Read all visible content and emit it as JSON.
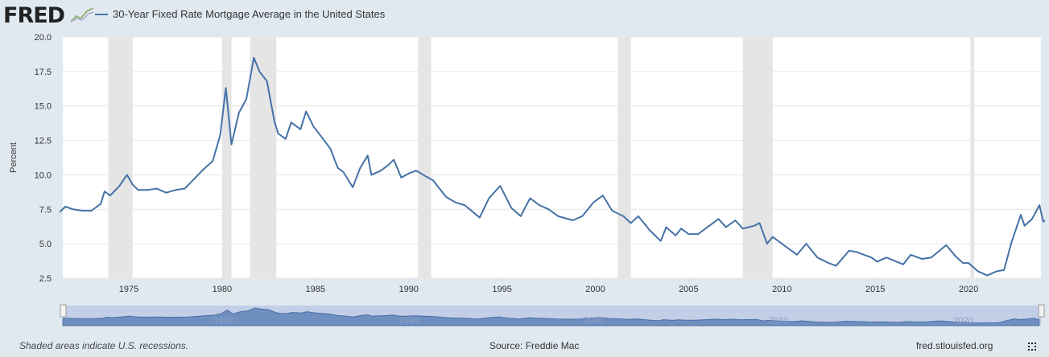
{
  "logo": "FRED",
  "legend": "30-Year Fixed Rate Mortgage Average in the United States",
  "footer": {
    "note": "Shaded areas indicate U.S. recessions.",
    "source": "Source: Freddie Mac",
    "site": "fred.stlouisfed.org"
  },
  "colors": {
    "line": "#4572a7",
    "recession": "#e5e5e5",
    "background": "#e1e9f0",
    "navigator": "#6f8fc0"
  },
  "chart_data": {
    "type": "line",
    "title": "30-Year Fixed Rate Mortgage Average in the United States",
    "ylabel": "Percent",
    "ylim": [
      2.5,
      20.0
    ],
    "xlim": [
      1971.3,
      2024.2
    ],
    "yticks": [
      "2.5",
      "5.0",
      "7.5",
      "10.0",
      "12.5",
      "15.0",
      "17.5",
      "20.0"
    ],
    "xticks": [
      "1975",
      "1980",
      "1985",
      "1990",
      "1995",
      "2000",
      "2005",
      "2010",
      "2015",
      "2020"
    ],
    "navigator_ticks": [
      "1980",
      "1990",
      "2000",
      "2010",
      "2020"
    ],
    "grid": true,
    "recessions": [
      [
        1973.9,
        1975.2
      ],
      [
        1980.0,
        1980.5
      ],
      [
        1981.5,
        1982.9
      ],
      [
        1990.5,
        1991.2
      ],
      [
        2001.2,
        2001.9
      ],
      [
        2007.9,
        2009.5
      ],
      [
        2020.1,
        2020.3
      ]
    ],
    "series": [
      {
        "name": "30-Year Fixed Rate Mortgage Average in the United States",
        "points": [
          [
            1971.3,
            7.3
          ],
          [
            1971.6,
            7.7
          ],
          [
            1972.0,
            7.5
          ],
          [
            1972.5,
            7.4
          ],
          [
            1973.0,
            7.4
          ],
          [
            1973.5,
            7.9
          ],
          [
            1973.7,
            8.8
          ],
          [
            1974.0,
            8.5
          ],
          [
            1974.5,
            9.2
          ],
          [
            1974.9,
            10.0
          ],
          [
            1975.2,
            9.3
          ],
          [
            1975.5,
            8.9
          ],
          [
            1976.0,
            8.9
          ],
          [
            1976.5,
            9.0
          ],
          [
            1977.0,
            8.7
          ],
          [
            1977.5,
            8.9
          ],
          [
            1978.0,
            9.0
          ],
          [
            1978.5,
            9.7
          ],
          [
            1979.0,
            10.4
          ],
          [
            1979.5,
            11.0
          ],
          [
            1979.9,
            12.9
          ],
          [
            1980.2,
            16.3
          ],
          [
            1980.5,
            12.2
          ],
          [
            1980.9,
            14.5
          ],
          [
            1981.3,
            15.5
          ],
          [
            1981.7,
            18.5
          ],
          [
            1982.0,
            17.5
          ],
          [
            1982.4,
            16.8
          ],
          [
            1982.8,
            13.9
          ],
          [
            1983.0,
            13.0
          ],
          [
            1983.4,
            12.6
          ],
          [
            1983.7,
            13.8
          ],
          [
            1984.2,
            13.3
          ],
          [
            1984.5,
            14.6
          ],
          [
            1984.9,
            13.5
          ],
          [
            1985.3,
            12.8
          ],
          [
            1985.8,
            11.9
          ],
          [
            1986.2,
            10.5
          ],
          [
            1986.5,
            10.2
          ],
          [
            1987.0,
            9.1
          ],
          [
            1987.4,
            10.5
          ],
          [
            1987.8,
            11.4
          ],
          [
            1988.0,
            10.0
          ],
          [
            1988.5,
            10.3
          ],
          [
            1988.9,
            10.7
          ],
          [
            1989.2,
            11.1
          ],
          [
            1989.6,
            9.8
          ],
          [
            1990.0,
            10.1
          ],
          [
            1990.4,
            10.3
          ],
          [
            1990.9,
            9.9
          ],
          [
            1991.3,
            9.6
          ],
          [
            1992.0,
            8.4
          ],
          [
            1992.5,
            8.0
          ],
          [
            1993.0,
            7.8
          ],
          [
            1993.8,
            6.9
          ],
          [
            1994.3,
            8.3
          ],
          [
            1994.9,
            9.2
          ],
          [
            1995.5,
            7.6
          ],
          [
            1996.0,
            7.0
          ],
          [
            1996.5,
            8.3
          ],
          [
            1997.0,
            7.8
          ],
          [
            1997.5,
            7.5
          ],
          [
            1998.0,
            7.0
          ],
          [
            1998.8,
            6.7
          ],
          [
            1999.3,
            7.0
          ],
          [
            1999.9,
            8.0
          ],
          [
            2000.4,
            8.5
          ],
          [
            2000.9,
            7.4
          ],
          [
            2001.5,
            7.0
          ],
          [
            2001.9,
            6.5
          ],
          [
            2002.3,
            7.0
          ],
          [
            2002.9,
            6.0
          ],
          [
            2003.5,
            5.2
          ],
          [
            2003.8,
            6.2
          ],
          [
            2004.3,
            5.6
          ],
          [
            2004.6,
            6.1
          ],
          [
            2005.0,
            5.7
          ],
          [
            2005.5,
            5.7
          ],
          [
            2006.0,
            6.2
          ],
          [
            2006.6,
            6.8
          ],
          [
            2007.0,
            6.2
          ],
          [
            2007.5,
            6.7
          ],
          [
            2007.9,
            6.1
          ],
          [
            2008.5,
            6.3
          ],
          [
            2008.8,
            6.5
          ],
          [
            2009.2,
            5.0
          ],
          [
            2009.5,
            5.5
          ],
          [
            2010.0,
            5.0
          ],
          [
            2010.8,
            4.2
          ],
          [
            2011.3,
            5.0
          ],
          [
            2011.9,
            4.0
          ],
          [
            2012.5,
            3.6
          ],
          [
            2012.9,
            3.4
          ],
          [
            2013.6,
            4.5
          ],
          [
            2014.0,
            4.4
          ],
          [
            2014.8,
            4.0
          ],
          [
            2015.1,
            3.7
          ],
          [
            2015.6,
            4.0
          ],
          [
            2016.5,
            3.5
          ],
          [
            2016.9,
            4.2
          ],
          [
            2017.5,
            3.9
          ],
          [
            2018.0,
            4.0
          ],
          [
            2018.8,
            4.9
          ],
          [
            2019.3,
            4.1
          ],
          [
            2019.7,
            3.6
          ],
          [
            2020.0,
            3.6
          ],
          [
            2020.5,
            3.0
          ],
          [
            2021.0,
            2.7
          ],
          [
            2021.5,
            3.0
          ],
          [
            2021.9,
            3.1
          ],
          [
            2022.3,
            5.1
          ],
          [
            2022.8,
            7.1
          ],
          [
            2023.0,
            6.3
          ],
          [
            2023.4,
            6.8
          ],
          [
            2023.8,
            7.8
          ],
          [
            2024.0,
            6.6
          ],
          [
            2024.1,
            6.7
          ]
        ]
      }
    ]
  }
}
